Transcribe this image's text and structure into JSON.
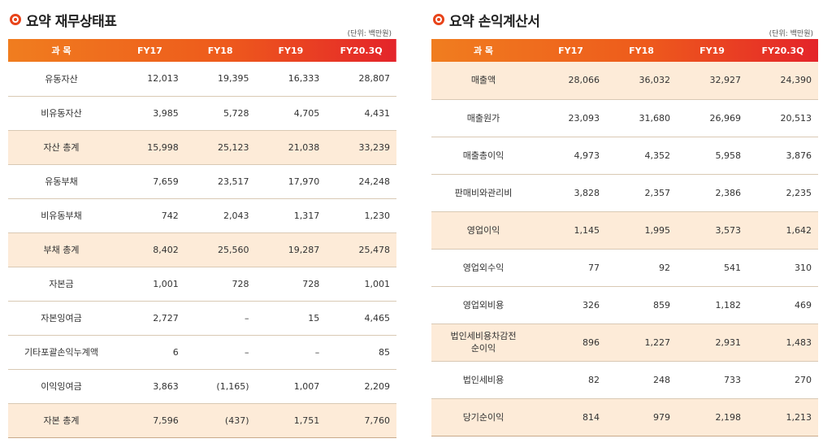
{
  "colors": {
    "accent": "#e8441a",
    "header_start": "#f07d1f",
    "header_end": "#e4242a",
    "highlight_row": "#fdebd8"
  },
  "balance": {
    "title": "요약 재무상태표",
    "unit": "(단위: 백만원)",
    "headers": [
      "과 목",
      "FY17",
      "FY18",
      "FY19",
      "FY20.3Q"
    ],
    "rows": [
      {
        "name": "유동자산",
        "v": [
          "12,013",
          "19,395",
          "16,333",
          "28,807"
        ],
        "hl": false
      },
      {
        "name": "비유동자산",
        "v": [
          "3,985",
          "5,728",
          "4,705",
          "4,431"
        ],
        "hl": false
      },
      {
        "name": "자산 총계",
        "v": [
          "15,998",
          "25,123",
          "21,038",
          "33,239"
        ],
        "hl": true
      },
      {
        "name": "유동부채",
        "v": [
          "7,659",
          "23,517",
          "17,970",
          "24,248"
        ],
        "hl": false
      },
      {
        "name": "비유동부채",
        "v": [
          "742",
          "2,043",
          "1,317",
          "1,230"
        ],
        "hl": false
      },
      {
        "name": "부채 총계",
        "v": [
          "8,402",
          "25,560",
          "19,287",
          "25,478"
        ],
        "hl": true
      },
      {
        "name": "자본금",
        "v": [
          "1,001",
          "728",
          "728",
          "1,001"
        ],
        "hl": false
      },
      {
        "name": "자본잉여금",
        "v": [
          "2,727",
          "–",
          "15",
          "4,465"
        ],
        "hl": false
      },
      {
        "name": "기타포괄손익누계액",
        "v": [
          "6",
          "–",
          "–",
          "85"
        ],
        "hl": false
      },
      {
        "name": "이익잉여금",
        "v": [
          "3,863",
          "(1,165)",
          "1,007",
          "2,209"
        ],
        "hl": false
      },
      {
        "name": "자본 총계",
        "v": [
          "7,596",
          "(437)",
          "1,751",
          "7,760"
        ],
        "hl": true
      }
    ]
  },
  "income": {
    "title": "요약 손익계산서",
    "unit": "(단위: 백만원)",
    "headers": [
      "과 목",
      "FY17",
      "FY18",
      "FY19",
      "FY20.3Q"
    ],
    "rows": [
      {
        "name": "매출액",
        "v": [
          "28,066",
          "36,032",
          "32,927",
          "24,390"
        ],
        "hl": true
      },
      {
        "name": "매출원가",
        "v": [
          "23,093",
          "31,680",
          "26,969",
          "20,513"
        ],
        "hl": false
      },
      {
        "name": "매출총이익",
        "v": [
          "4,973",
          "4,352",
          "5,958",
          "3,876"
        ],
        "hl": false
      },
      {
        "name": "판매비와관리비",
        "v": [
          "3,828",
          "2,357",
          "2,386",
          "2,235"
        ],
        "hl": false
      },
      {
        "name": "영업이익",
        "v": [
          "1,145",
          "1,995",
          "3,573",
          "1,642"
        ],
        "hl": true
      },
      {
        "name": "영업외수익",
        "v": [
          "77",
          "92",
          "541",
          "310"
        ],
        "hl": false
      },
      {
        "name": "영업외비용",
        "v": [
          "326",
          "859",
          "1,182",
          "469"
        ],
        "hl": false
      },
      {
        "name": "법인세비용차감전\n순이익",
        "v": [
          "896",
          "1,227",
          "2,931",
          "1,483"
        ],
        "hl": true
      },
      {
        "name": "법인세비용",
        "v": [
          "82",
          "248",
          "733",
          "270"
        ],
        "hl": false
      },
      {
        "name": "당기순이익",
        "v": [
          "814",
          "979",
          "2,198",
          "1,213"
        ],
        "hl": true
      }
    ]
  }
}
